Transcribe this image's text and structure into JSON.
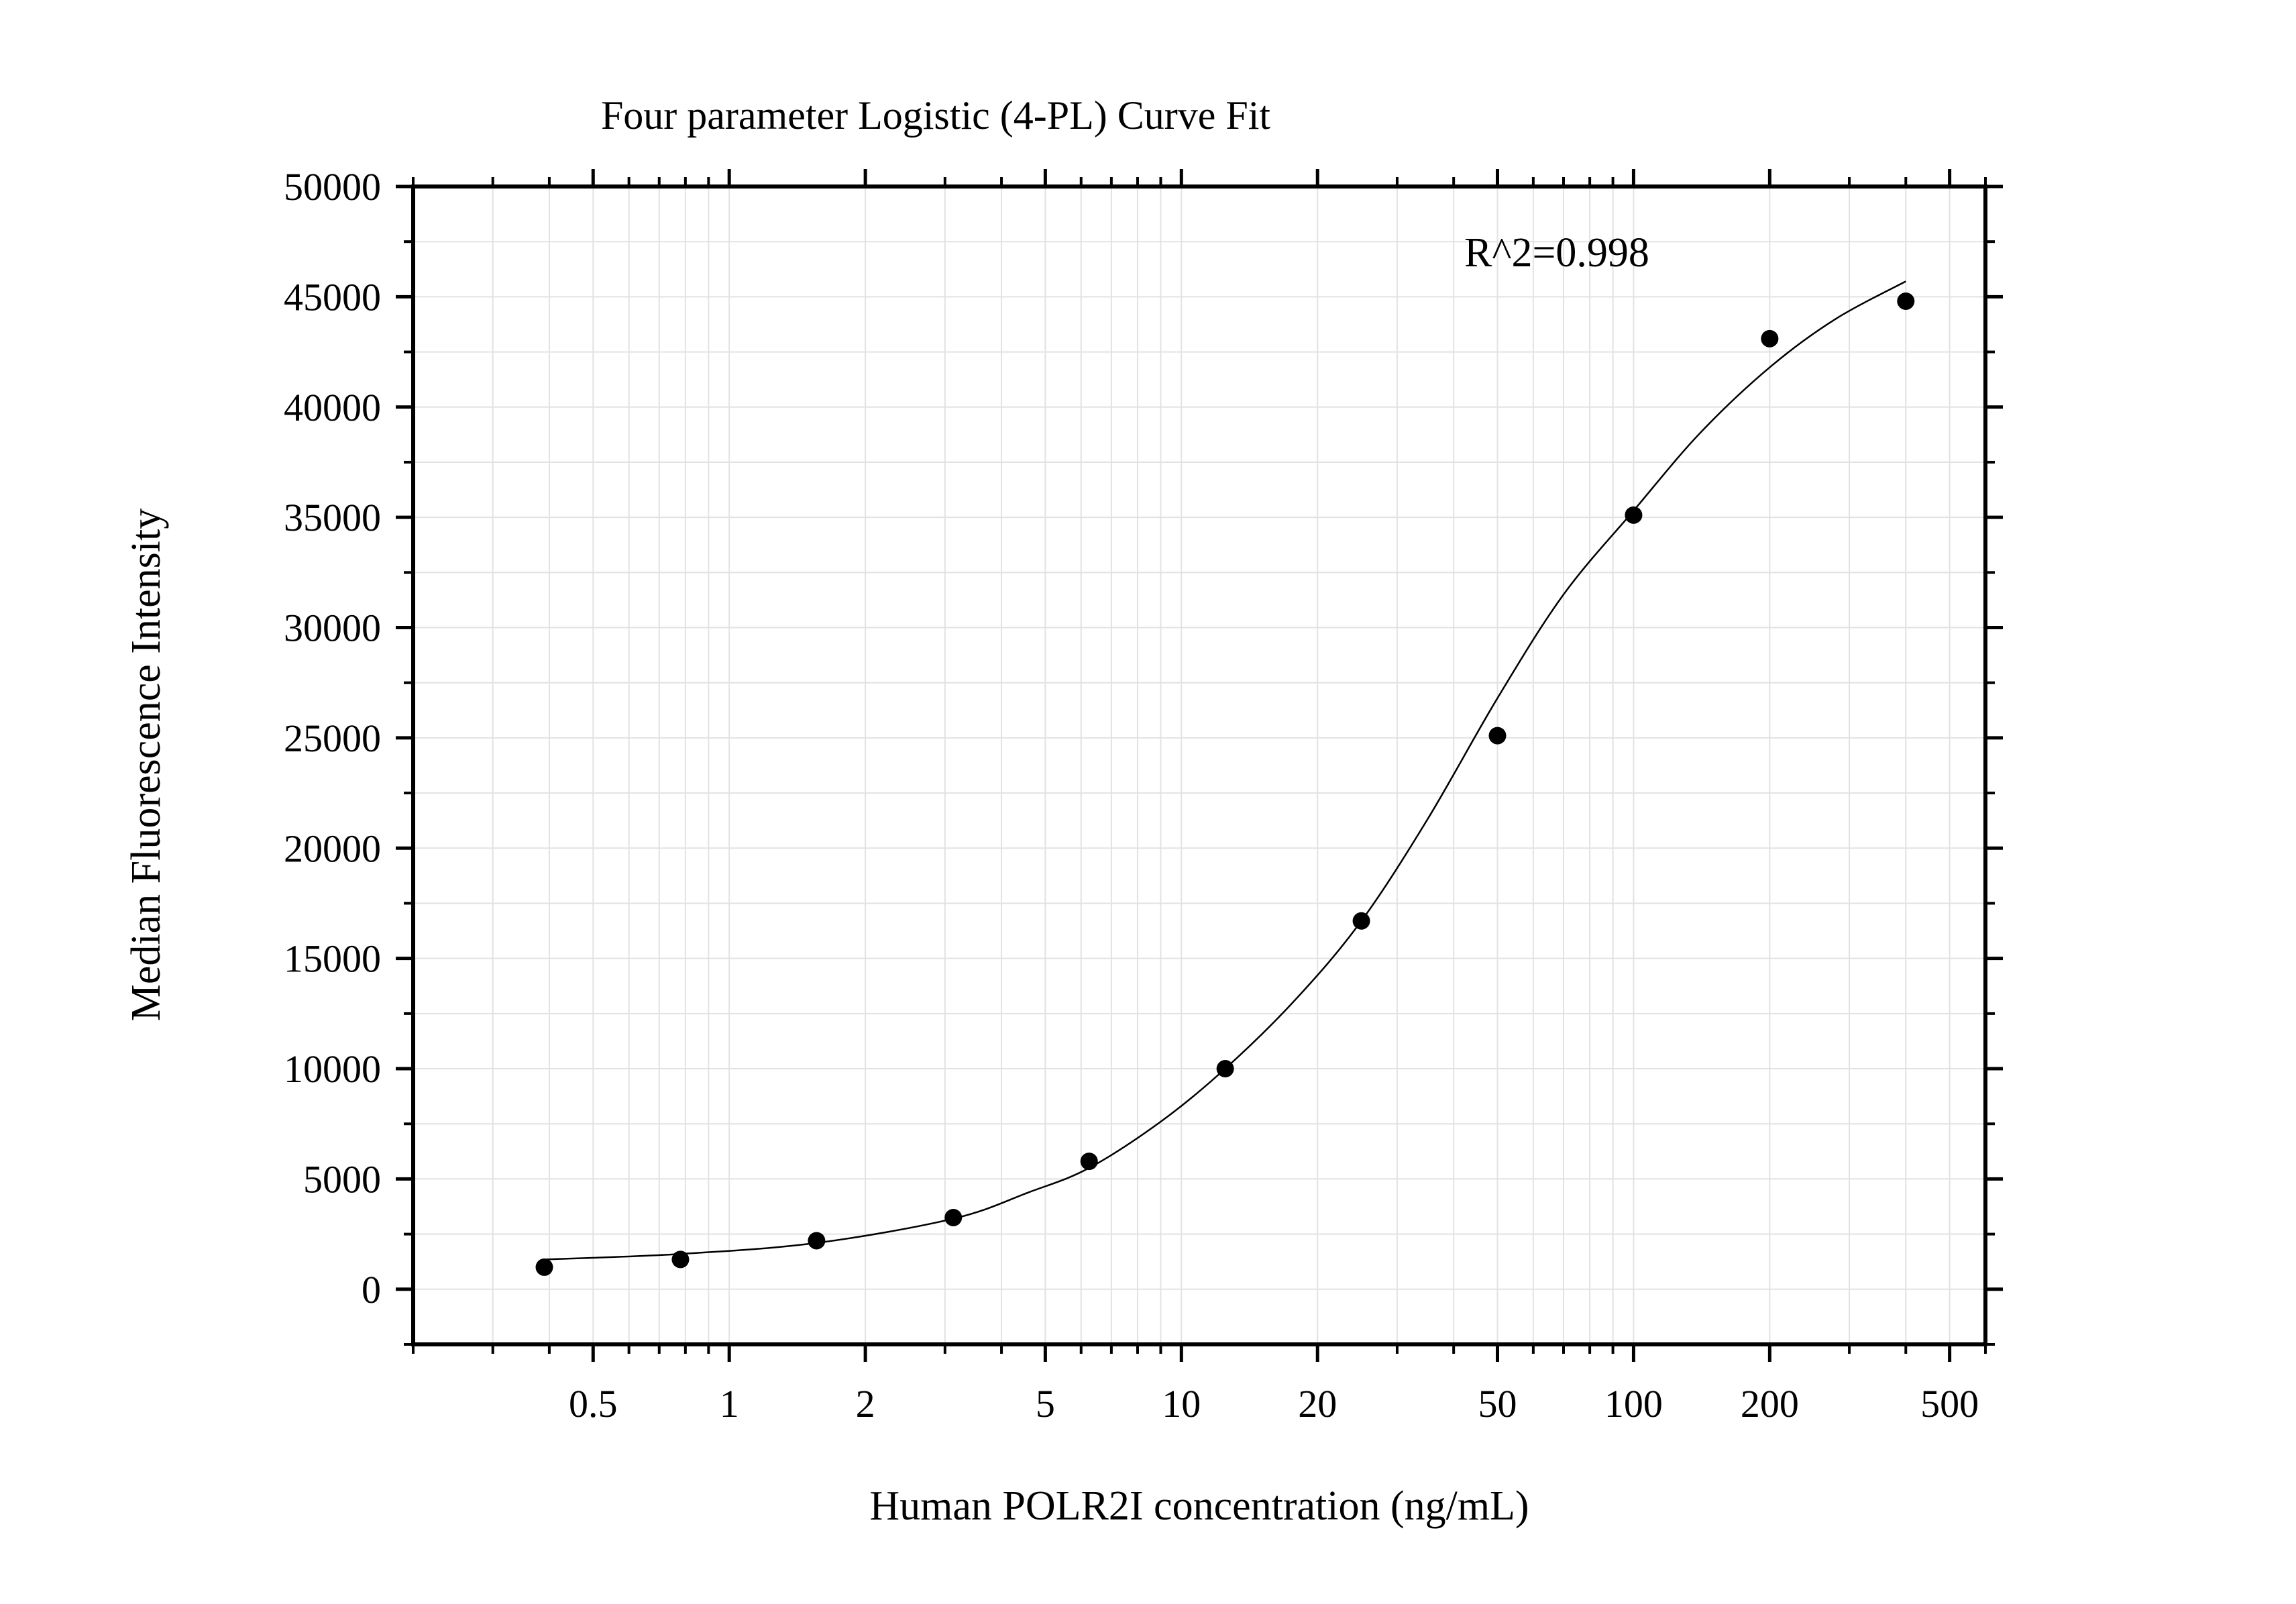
{
  "chart_data": {
    "type": "scatter",
    "title": "Four parameter Logistic (4-PL) Curve Fit",
    "xlabel": "Human POLR2I concentration (ng/mL)",
    "ylabel": "Median Fluorescence Intensity",
    "x_scale": "log",
    "xlim": [
      0.2,
      600
    ],
    "ylim": [
      -2500,
      50000
    ],
    "x_ticks": [
      0.5,
      1,
      2,
      5,
      10,
      20,
      50,
      100,
      200,
      500
    ],
    "x_tick_labels": [
      "0.5",
      "1",
      "2",
      "5",
      "10",
      "20",
      "50",
      "100",
      "200",
      "500"
    ],
    "y_ticks": [
      0,
      5000,
      10000,
      15000,
      20000,
      25000,
      30000,
      35000,
      40000,
      45000,
      50000
    ],
    "y_tick_labels": [
      "0",
      "5000",
      "10000",
      "15000",
      "20000",
      "25000",
      "30000",
      "35000",
      "40000",
      "45000",
      "50000"
    ],
    "grid": true,
    "annotation": "R^2=0.998",
    "series": [
      {
        "kind": "points",
        "color": "#000000",
        "x": [
          0.39,
          0.78,
          1.56,
          3.13,
          6.25,
          12.5,
          25,
          50,
          100,
          200,
          400
        ],
        "y": [
          1000,
          1350,
          2200,
          3250,
          5800,
          10000,
          16700,
          25100,
          35100,
          43100,
          44800
        ]
      },
      {
        "kind": "fit-curve",
        "color": "#000000",
        "x": [
          0.39,
          0.78,
          1.56,
          3.13,
          4.6,
          6.25,
          9.0,
          12.5,
          18.0,
          25,
          35,
          50,
          70,
          100,
          140,
          200,
          280,
          400
        ],
        "y": [
          1350,
          1600,
          2100,
          3200,
          4400,
          5500,
          7600,
          10000,
          13200,
          16700,
          21300,
          26800,
          31500,
          35300,
          38800,
          41800,
          44000,
          45700
        ]
      }
    ]
  }
}
